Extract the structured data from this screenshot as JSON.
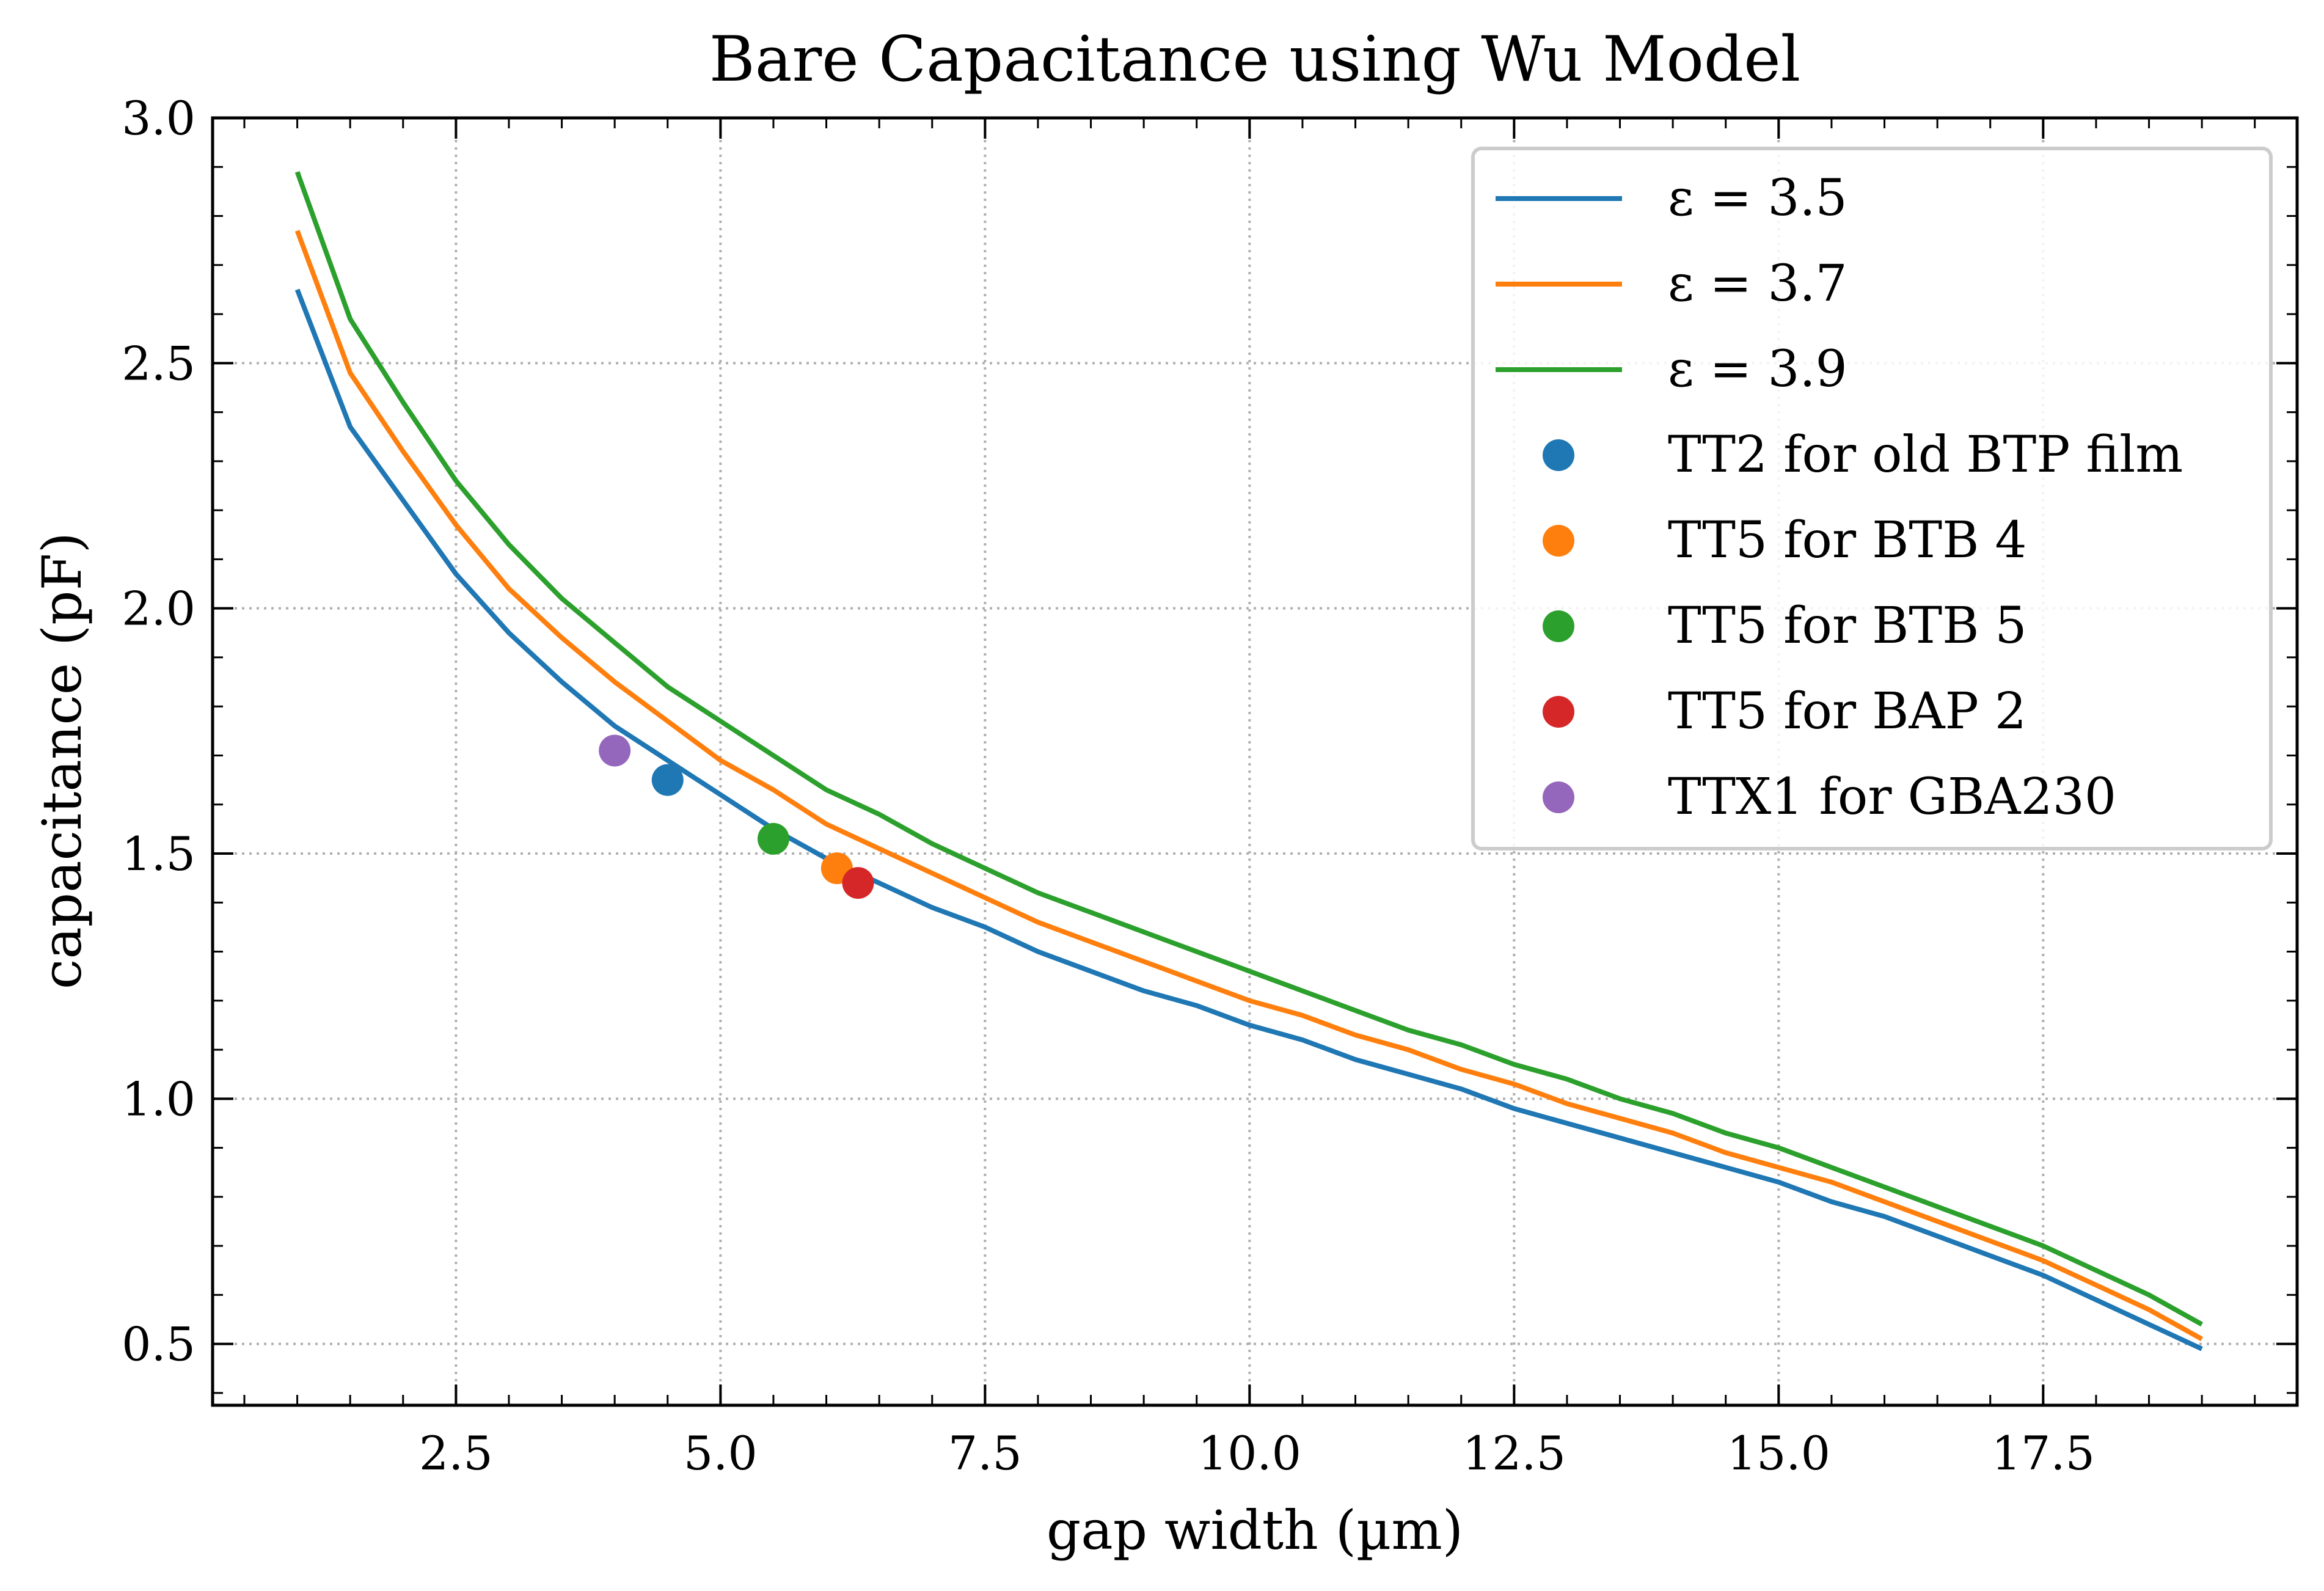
{
  "chart_data": {
    "type": "line",
    "title": "Bare Capacitance using Wu Model",
    "xlabel": "gap width (µm)",
    "ylabel": "capacitance (pF)",
    "xlim": [
      0.2,
      19.9
    ],
    "ylim": [
      0.375,
      3.0
    ],
    "xticks": [
      2.5,
      5.0,
      7.5,
      10.0,
      12.5,
      15.0,
      17.5
    ],
    "xtick_labels": [
      "2.5",
      "5.0",
      "7.5",
      "10.0",
      "12.5",
      "15.0",
      "17.5"
    ],
    "yticks": [
      0.5,
      1.0,
      1.5,
      2.0,
      2.5,
      3.0
    ],
    "ytick_labels": [
      "0.5",
      "1.0",
      "1.5",
      "2.0",
      "2.5",
      "3.0"
    ],
    "grid": true,
    "legend_position": "top-right",
    "x": [
      1.0,
      1.5,
      2.0,
      2.5,
      3.0,
      3.5,
      4.0,
      4.5,
      5.0,
      5.5,
      6.0,
      6.5,
      7.0,
      7.5,
      8.0,
      8.5,
      9.0,
      9.5,
      10.0,
      10.5,
      11.0,
      11.5,
      12.0,
      12.5,
      13.0,
      13.5,
      14.0,
      14.5,
      15.0,
      15.5,
      16.0,
      16.5,
      17.0,
      17.5,
      18.0,
      18.5,
      19.0
    ],
    "series": [
      {
        "name": "ε = 3.5",
        "color": "#1f77b4",
        "values": [
          2.65,
          2.37,
          2.22,
          2.07,
          1.95,
          1.85,
          1.76,
          1.69,
          1.62,
          1.55,
          1.49,
          1.44,
          1.39,
          1.35,
          1.3,
          1.26,
          1.22,
          1.19,
          1.15,
          1.12,
          1.08,
          1.05,
          1.02,
          0.98,
          0.95,
          0.92,
          0.89,
          0.86,
          0.83,
          0.79,
          0.76,
          0.72,
          0.68,
          0.64,
          0.59,
          0.54,
          0.49
        ]
      },
      {
        "name": "ε = 3.7",
        "color": "#ff7f0e",
        "values": [
          2.77,
          2.48,
          2.32,
          2.17,
          2.04,
          1.94,
          1.85,
          1.77,
          1.69,
          1.63,
          1.56,
          1.51,
          1.46,
          1.41,
          1.36,
          1.32,
          1.28,
          1.24,
          1.2,
          1.17,
          1.13,
          1.1,
          1.06,
          1.03,
          0.99,
          0.96,
          0.93,
          0.89,
          0.86,
          0.83,
          0.79,
          0.75,
          0.71,
          0.67,
          0.62,
          0.57,
          0.51
        ]
      },
      {
        "name": "ε = 3.9",
        "color": "#2ca02c",
        "values": [
          2.89,
          2.59,
          2.42,
          2.26,
          2.13,
          2.02,
          1.93,
          1.84,
          1.77,
          1.7,
          1.63,
          1.58,
          1.52,
          1.47,
          1.42,
          1.38,
          1.34,
          1.3,
          1.26,
          1.22,
          1.18,
          1.14,
          1.11,
          1.07,
          1.04,
          1.0,
          0.97,
          0.93,
          0.9,
          0.86,
          0.82,
          0.78,
          0.74,
          0.7,
          0.65,
          0.6,
          0.54
        ]
      }
    ],
    "points": [
      {
        "name": "TT2 for old BTP film",
        "color": "#1f77b4",
        "x": 4.5,
        "y": 1.65
      },
      {
        "name": "TT5 for BTB 4",
        "color": "#ff7f0e",
        "x": 6.1,
        "y": 1.47
      },
      {
        "name": "TT5 for BTB 5",
        "color": "#2ca02c",
        "x": 5.5,
        "y": 1.53
      },
      {
        "name": "TT5 for BAP 2",
        "color": "#d62728",
        "x": 6.3,
        "y": 1.44
      },
      {
        "name": "TTX1 for GBA230",
        "color": "#9467bd",
        "x": 4.0,
        "y": 1.71
      }
    ]
  }
}
